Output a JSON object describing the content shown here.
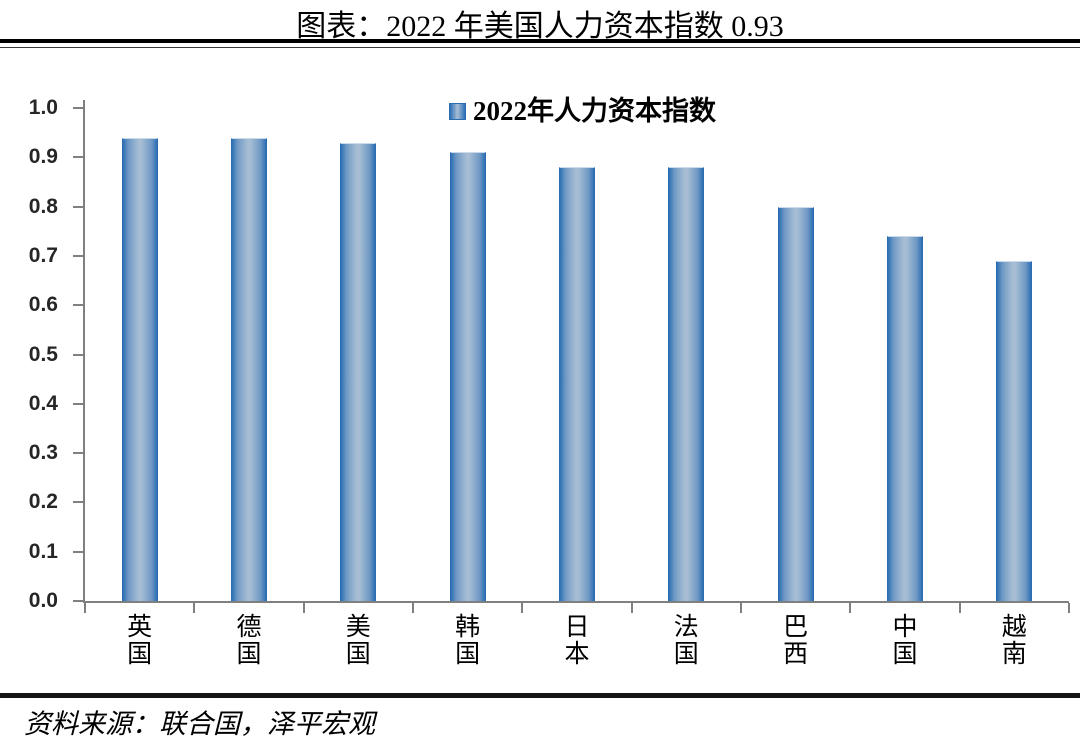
{
  "header": {
    "title": "图表：2022 年美国人力资本指数 0.93"
  },
  "legend": {
    "label": "2022年人力资本指数"
  },
  "footer": {
    "source": "资料来源：联合国，泽平宏观"
  },
  "colors": {
    "bar_edge": "#2e70b5",
    "bar_mid": "#a6bdd4",
    "bar_border": "#2b6cb0",
    "axis": "#808080",
    "tick_label": "#262626",
    "text": "#000000"
  },
  "chart_data": {
    "type": "bar",
    "title": "图表：2022 年美国人力资本指数 0.93",
    "legend": [
      "2022年人力资本指数"
    ],
    "legend_position": "top-center",
    "categories": [
      "英国",
      "德国",
      "美国",
      "韩国",
      "日本",
      "法国",
      "巴西",
      "中国",
      "越南"
    ],
    "values": [
      0.94,
      0.94,
      0.93,
      0.91,
      0.88,
      0.88,
      0.8,
      0.74,
      0.69
    ],
    "xlabel": "",
    "ylabel": "",
    "ylim": [
      0.0,
      1.0
    ],
    "ytick_step": 0.1,
    "ytick_labels": [
      "1.0",
      "0.9",
      "0.8",
      "0.7",
      "0.6",
      "0.5",
      "0.4",
      "0.3",
      "0.2",
      "0.1",
      "0.0"
    ],
    "grid": false,
    "source": "资料来源：联合国，泽平宏观"
  }
}
